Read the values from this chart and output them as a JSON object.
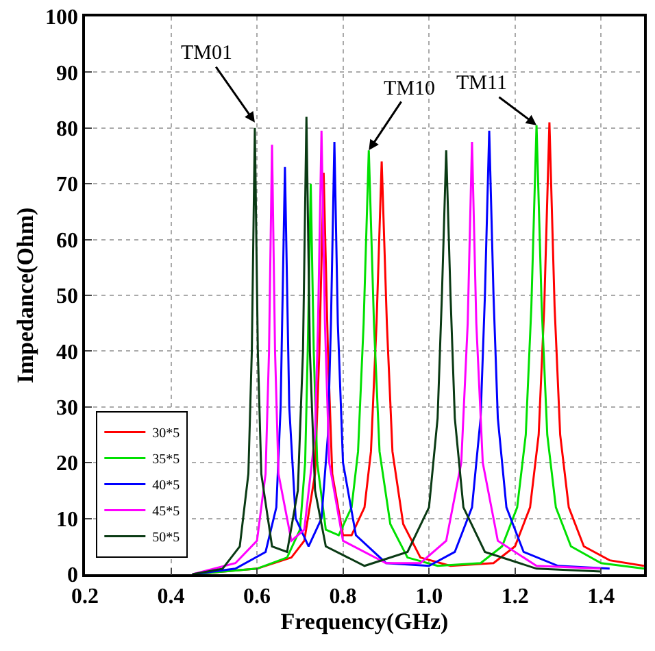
{
  "chart_data": {
    "type": "line",
    "xlabel": "Frequency(GHz)",
    "ylabel": "Impedance(Ohm)",
    "xlim": [
      0.2,
      1.5
    ],
    "xticks": [
      {
        "value": 0.2,
        "label": "0.2"
      },
      {
        "value": 0.4,
        "label": "0.4"
      },
      {
        "value": 0.6,
        "label": "0.6"
      },
      {
        "value": 0.8,
        "label": "0.8"
      },
      {
        "value": 1,
        "label": "1.0"
      },
      {
        "value": 1.2,
        "label": "1.2"
      },
      {
        "value": 1.4,
        "label": "1.4"
      }
    ],
    "ylim": [
      0,
      100
    ],
    "yticks": [
      0,
      10,
      20,
      30,
      40,
      50,
      60,
      70,
      80,
      90,
      100
    ],
    "grid": true,
    "legend": "bottom left",
    "marker": "none",
    "line_style": "solid",
    "series": [
      {
        "name": "30*5",
        "color": "#ff0000",
        "x": [
          0.45,
          0.6,
          0.68,
          0.71,
          0.735,
          0.745,
          0.755,
          0.765,
          0.775,
          0.8,
          0.82,
          0.85,
          0.865,
          0.878,
          0.89,
          0.902,
          0.915,
          0.94,
          0.98,
          1.05,
          1.15,
          1.2,
          1.235,
          1.255,
          1.268,
          1.28,
          1.292,
          1.305,
          1.325,
          1.36,
          1.42,
          1.5
        ],
        "values": [
          0,
          1,
          3,
          6,
          18,
          40,
          72,
          40,
          18,
          7,
          7,
          12,
          22,
          45,
          74,
          45,
          22,
          9,
          3,
          1.5,
          2,
          5,
          12,
          25,
          48,
          81,
          48,
          25,
          12,
          5,
          2.5,
          1.5
        ]
      },
      {
        "name": "35*5",
        "color": "#00e000",
        "x": [
          0.45,
          0.6,
          0.67,
          0.7,
          0.712,
          0.718,
          0.725,
          0.732,
          0.74,
          0.76,
          0.79,
          0.82,
          0.835,
          0.848,
          0.86,
          0.872,
          0.885,
          0.91,
          0.95,
          1.02,
          1.12,
          1.17,
          1.205,
          1.225,
          1.238,
          1.25,
          1.262,
          1.275,
          1.295,
          1.33,
          1.4,
          1.5
        ],
        "values": [
          0,
          1,
          3,
          8,
          20,
          40,
          70,
          40,
          20,
          8,
          7,
          12,
          22,
          45,
          76,
          45,
          22,
          9,
          3,
          1.5,
          2,
          5,
          12,
          25,
          48,
          80.5,
          48,
          25,
          12,
          5,
          2,
          1
        ]
      },
      {
        "name": "40*5",
        "color": "#0000ff",
        "x": [
          0.45,
          0.55,
          0.62,
          0.645,
          0.655,
          0.665,
          0.675,
          0.69,
          0.72,
          0.75,
          0.765,
          0.772,
          0.78,
          0.788,
          0.8,
          0.83,
          0.9,
          1.0,
          1.06,
          1.1,
          1.12,
          1.13,
          1.14,
          1.15,
          1.16,
          1.18,
          1.22,
          1.3,
          1.42
        ],
        "values": [
          0,
          1,
          4,
          12,
          30,
          73,
          30,
          10,
          5,
          10,
          25,
          45,
          77.5,
          45,
          20,
          7,
          2,
          1.5,
          4,
          12,
          28,
          50,
          79.5,
          50,
          28,
          12,
          4,
          1.5,
          1
        ]
      },
      {
        "name": "45*5",
        "color": "#ff00ff",
        "x": [
          0.45,
          0.55,
          0.6,
          0.62,
          0.628,
          0.635,
          0.642,
          0.65,
          0.68,
          0.71,
          0.735,
          0.742,
          0.75,
          0.758,
          0.768,
          0.8,
          0.9,
          0.98,
          1.04,
          1.075,
          1.09,
          1.1,
          1.11,
          1.125,
          1.16,
          1.25,
          1.4
        ],
        "values": [
          0,
          2,
          6,
          18,
          40,
          77,
          40,
          18,
          6,
          8,
          25,
          45,
          79.5,
          45,
          20,
          6,
          2,
          2,
          6,
          20,
          45,
          77.5,
          45,
          20,
          6,
          1.5,
          1
        ]
      },
      {
        "name": "50*5",
        "color": "#0a3a14",
        "x": [
          0.45,
          0.52,
          0.56,
          0.58,
          0.588,
          0.595,
          0.602,
          0.61,
          0.635,
          0.67,
          0.695,
          0.707,
          0.715,
          0.723,
          0.735,
          0.76,
          0.85,
          0.95,
          1.0,
          1.02,
          1.03,
          1.04,
          1.05,
          1.06,
          1.08,
          1.13,
          1.25,
          1.4
        ],
        "values": [
          0,
          1,
          5,
          18,
          40,
          80,
          40,
          18,
          5,
          4,
          15,
          40,
          82,
          40,
          15,
          5,
          1.5,
          4,
          12,
          28,
          50,
          76,
          50,
          28,
          12,
          4,
          1,
          0.5
        ]
      }
    ],
    "annotations": [
      {
        "text": "TM01",
        "x": 0.595,
        "y": 81
      },
      {
        "text": "TM10",
        "x": 0.86,
        "y": 76
      },
      {
        "text": "TM11",
        "x": 1.25,
        "y": 80.5
      }
    ]
  }
}
